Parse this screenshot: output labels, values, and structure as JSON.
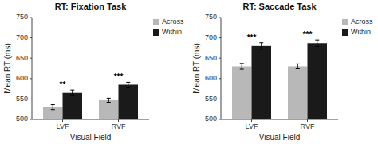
{
  "chart_data": [
    {
      "type": "bar",
      "title": "RT: Fixation Task",
      "xlabel": "Visual Field",
      "ylabel": "Mean RT (ms)",
      "categories": [
        "LVF",
        "RVF"
      ],
      "series": [
        {
          "name": "Across",
          "color": "#b8b8b8",
          "values": [
            530,
            547
          ],
          "errors": [
            6,
            5
          ]
        },
        {
          "name": "Within",
          "color": "#1a1a1a",
          "values": [
            565,
            585
          ],
          "errors": [
            7,
            6
          ]
        }
      ],
      "annotations": [
        "**",
        "***"
      ],
      "ylim": [
        500,
        750
      ],
      "yticks": [
        500,
        550,
        600,
        650,
        700,
        750
      ],
      "grid": false,
      "legend": "right"
    },
    {
      "type": "bar",
      "title": "RT: Saccade Task",
      "xlabel": "Visual Field",
      "ylabel": "Mean RT (ms)",
      "categories": [
        "LVF",
        "RVF"
      ],
      "series": [
        {
          "name": "Across",
          "color": "#b8b8b8",
          "values": [
            630,
            630
          ],
          "errors": [
            7,
            6
          ]
        },
        {
          "name": "Within",
          "color": "#1a1a1a",
          "values": [
            680,
            687
          ],
          "errors": [
            8,
            8
          ]
        }
      ],
      "annotations": [
        "***",
        "***"
      ],
      "ylim": [
        500,
        750
      ],
      "yticks": [
        500,
        550,
        600,
        650,
        700,
        750
      ],
      "grid": false,
      "legend": "right"
    }
  ]
}
